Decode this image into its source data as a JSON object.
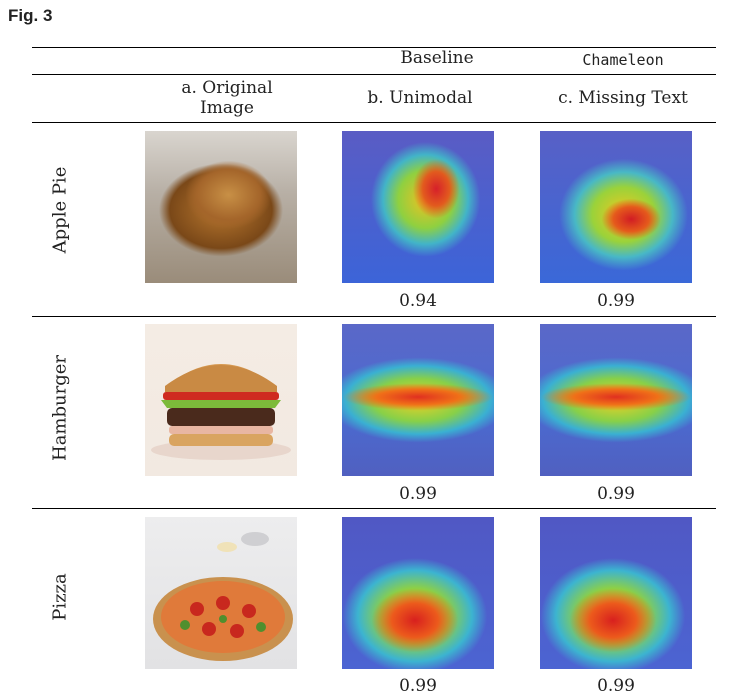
{
  "figure": {
    "label": "Fig. 3"
  },
  "header": {
    "group_baseline": "Baseline",
    "group_chameleon": "Chameleon",
    "col_a_line1": "a. Original",
    "col_a_line2": "Image",
    "col_b": "b. Unimodal",
    "col_c": "c. Missing Text"
  },
  "rows": [
    {
      "label": "Apple Pie",
      "score_b": "0.94",
      "score_c": "0.99"
    },
    {
      "label": "Hamburger",
      "score_b": "0.99",
      "score_c": "0.99"
    },
    {
      "label": "Pizza",
      "score_b": "0.99",
      "score_c": "0.99"
    }
  ]
}
